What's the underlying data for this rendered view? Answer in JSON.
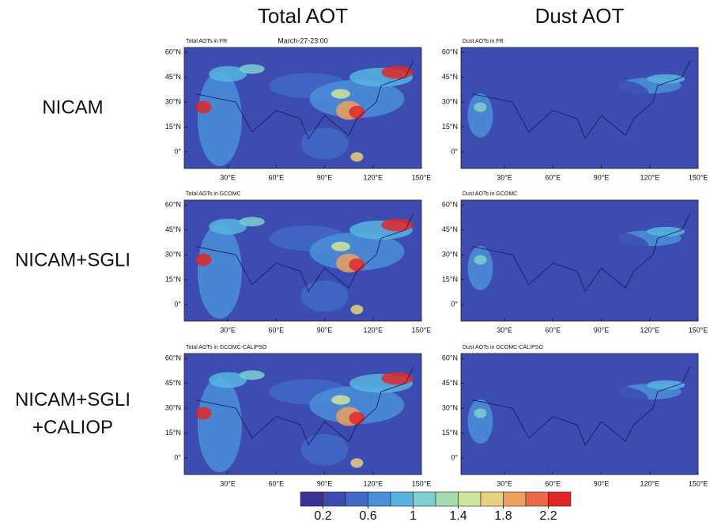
{
  "columns": [
    "Total AOT",
    "Dust AOT"
  ],
  "rows": [
    [
      "NICAM"
    ],
    [
      "NICAM+SGLI"
    ],
    [
      "NICAM+SGLI",
      "+CALIOP"
    ]
  ],
  "date": "March-27-23:00",
  "panels": [
    [
      "Total AOTs in FR",
      "Dust AOTs in FR"
    ],
    [
      "Total AOTs in GCOMC",
      "Dust AOTs in GCOMC"
    ],
    [
      "Total AOTs in GCOMC-CALIPSO",
      "Dust AOTs in GCOMC-CALIPSO"
    ]
  ],
  "lat_ticks": [
    {
      "value": 60,
      "label": "60°N"
    },
    {
      "value": 45,
      "label": "45°N"
    },
    {
      "value": 30,
      "label": "30°N"
    },
    {
      "value": 15,
      "label": "15°N"
    },
    {
      "value": 0,
      "label": "0°"
    }
  ],
  "lon_ticks": [
    {
      "value": 30,
      "label": "30°E"
    },
    {
      "value": 60,
      "label": "60°E"
    },
    {
      "value": 90,
      "label": "90°E"
    },
    {
      "value": 120,
      "label": "120°E"
    },
    {
      "value": 150,
      "label": "150°E"
    }
  ],
  "colorbar": {
    "lim": [
      0,
      2.4
    ],
    "ticks": [
      0.2,
      0.6,
      1,
      1.4,
      1.8,
      2.2
    ],
    "colors": [
      "#3a3294",
      "#3d4cb0",
      "#4169c8",
      "#4a8fd8",
      "#56b4e0",
      "#7cd0d0",
      "#a8dcb0",
      "#cce69a",
      "#e8d080",
      "#eca060",
      "#e86a48",
      "#e0282a"
    ]
  }
}
